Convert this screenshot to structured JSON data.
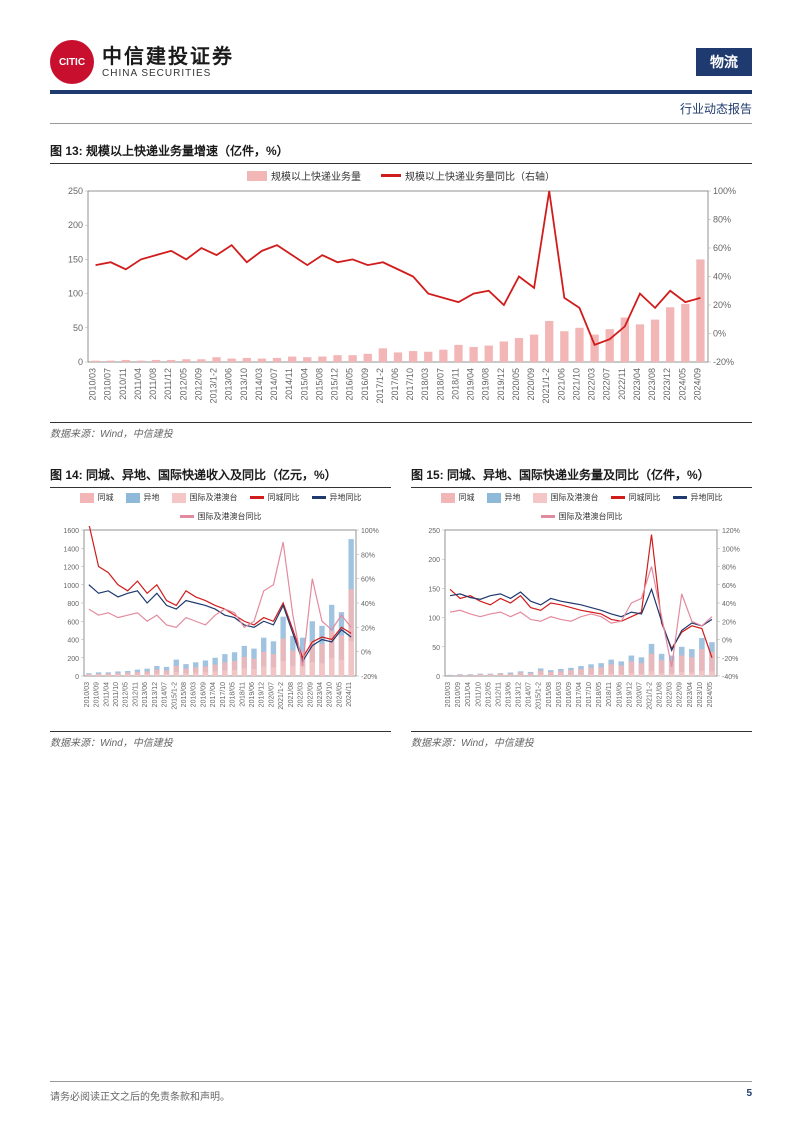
{
  "header": {
    "logo_inner": "CITIC",
    "logo_cn": "中信建投证券",
    "logo_en": "CHINA SECURITIES",
    "category": "物流",
    "report_type": "行业动态报告"
  },
  "colors": {
    "brand_blue": "#1f3a6e",
    "brand_red": "#c8102e",
    "bar_pink": "#f3b6b6",
    "line_red": "#d11c1c",
    "bar_cyan": "#8fb9d9",
    "line_navy": "#1f3a6e",
    "bar_lightpink": "#f5c6c6",
    "line_pink": "#e38b9e",
    "grid": "#d0d0d0"
  },
  "fig13": {
    "title": "图 13: 规模以上快递业务量增速（亿件，%）",
    "source": "数据来源：Wind，中信建投",
    "legend": [
      {
        "label": "规模以上快递业务量",
        "type": "bar",
        "color": "#f3b6b6"
      },
      {
        "label": "规模以上快递业务量同比（右轴）",
        "type": "line",
        "color": "#d11c1c"
      }
    ],
    "yleft": {
      "min": 0,
      "max": 250,
      "ticks": [
        0,
        50,
        100,
        150,
        200,
        250
      ]
    },
    "yright": {
      "min": -20,
      "max": 100,
      "ticks": [
        -20,
        0,
        20,
        40,
        60,
        80,
        100
      ],
      "suffix": "%"
    },
    "xlabels": [
      "2010/03",
      "2010/07",
      "2010/11",
      "2011/04",
      "2011/08",
      "2011/12",
      "2012/05",
      "2012/09",
      "2013/1-2",
      "2013/06",
      "2013/10",
      "2014/03",
      "2014/07",
      "2014/11",
      "2015/04",
      "2015/08",
      "2015/12",
      "2016/05",
      "2016/09",
      "2017/1-2",
      "2017/06",
      "2017/10",
      "2018/03",
      "2018/07",
      "2018/11",
      "2019/04",
      "2019/08",
      "2019/12",
      "2020/05",
      "2020/09",
      "2021/1-2",
      "2021/06",
      "2021/10",
      "2022/03",
      "2022/07",
      "2022/11",
      "2023/04",
      "2023/08",
      "2023/12",
      "2024/05",
      "2024/09"
    ],
    "bars": [
      2,
      2,
      3,
      2,
      3,
      3,
      4,
      4,
      7,
      5,
      6,
      5,
      6,
      8,
      7,
      8,
      10,
      10,
      12,
      20,
      14,
      16,
      15,
      18,
      25,
      22,
      24,
      30,
      35,
      40,
      60,
      45,
      50,
      40,
      48,
      65,
      55,
      62,
      80,
      85,
      150
    ],
    "line": [
      48,
      50,
      45,
      52,
      55,
      58,
      52,
      60,
      55,
      62,
      50,
      58,
      62,
      55,
      48,
      55,
      50,
      52,
      48,
      50,
      45,
      40,
      28,
      25,
      22,
      28,
      30,
      20,
      40,
      32,
      100,
      25,
      18,
      -8,
      -4,
      5,
      28,
      18,
      30,
      22,
      25
    ]
  },
  "fig14": {
    "title": "图 14: 同城、异地、国际快递收入及同比（亿元，%）",
    "source": "数据来源：Wind，中信建投",
    "legend": [
      {
        "label": "同城",
        "type": "bar",
        "color": "#f3b6b6"
      },
      {
        "label": "异地",
        "type": "bar",
        "color": "#8fb9d9"
      },
      {
        "label": "国际及港澳台",
        "type": "bar",
        "color": "#f5c6c6"
      },
      {
        "label": "同城同比",
        "type": "line",
        "color": "#d11c1c"
      },
      {
        "label": "异地同比",
        "type": "line",
        "color": "#1f3a6e"
      },
      {
        "label": "国际及港澳台同比",
        "type": "line",
        "color": "#e38b9e"
      }
    ],
    "yleft": {
      "min": 0,
      "max": 1600,
      "ticks": [
        0,
        200,
        400,
        600,
        800,
        1000,
        1200,
        1400,
        1600
      ]
    },
    "yright": {
      "min": -20,
      "max": 100,
      "ticks": [
        -20,
        0,
        20,
        40,
        60,
        80,
        100
      ],
      "suffix": "%"
    },
    "xlabels": [
      "2010/03",
      "2010/09",
      "2011/04",
      "2011/10",
      "2012/05",
      "2012/11",
      "2013/06",
      "2013/12",
      "2014/07",
      "2015/1-2",
      "2015/08",
      "2016/03",
      "2016/09",
      "2017/04",
      "2017/10",
      "2018/05",
      "2018/11",
      "2019/06",
      "2019/12",
      "2020/07",
      "2021/1-2",
      "2021/08",
      "2022/03",
      "2022/09",
      "2023/04",
      "2023/10",
      "2024/05",
      "2024/11"
    ],
    "bars_a": [
      30,
      40,
      40,
      50,
      55,
      70,
      80,
      110,
      100,
      180,
      130,
      150,
      170,
      200,
      240,
      260,
      330,
      300,
      420,
      380,
      650,
      440,
      420,
      600,
      550,
      780,
      700,
      1500
    ],
    "bars_b": [
      20,
      25,
      28,
      32,
      38,
      45,
      50,
      70,
      62,
      110,
      82,
      95,
      105,
      125,
      150,
      165,
      210,
      190,
      265,
      240,
      410,
      280,
      265,
      380,
      350,
      495,
      445,
      950
    ],
    "bars_c": [
      8,
      10,
      11,
      13,
      15,
      18,
      20,
      28,
      25,
      44,
      33,
      38,
      42,
      50,
      60,
      66,
      84,
      76,
      106,
      96,
      164,
      112,
      106,
      152,
      140,
      198,
      178,
      380
    ],
    "line_a": [
      105,
      70,
      65,
      55,
      50,
      58,
      48,
      55,
      42,
      38,
      50,
      45,
      42,
      38,
      35,
      30,
      25,
      22,
      28,
      25,
      40,
      18,
      -5,
      8,
      12,
      10,
      20,
      15
    ],
    "line_b": [
      55,
      48,
      50,
      45,
      48,
      50,
      40,
      48,
      38,
      35,
      42,
      40,
      38,
      35,
      30,
      28,
      22,
      20,
      25,
      22,
      38,
      15,
      -8,
      5,
      10,
      8,
      18,
      12
    ],
    "line_c": [
      35,
      30,
      32,
      28,
      30,
      32,
      25,
      30,
      22,
      20,
      28,
      25,
      22,
      30,
      35,
      32,
      20,
      25,
      50,
      55,
      90,
      30,
      -12,
      60,
      25,
      18,
      30,
      20
    ]
  },
  "fig15": {
    "title": "图 15: 同城、异地、国际快递业务量及同比（亿件，%）",
    "source": "数据来源：Wind，中信建投",
    "legend": [
      {
        "label": "同城",
        "type": "bar",
        "color": "#f3b6b6"
      },
      {
        "label": "异地",
        "type": "bar",
        "color": "#8fb9d9"
      },
      {
        "label": "国际及港澳台",
        "type": "bar",
        "color": "#f5c6c6"
      },
      {
        "label": "同城同比",
        "type": "line",
        "color": "#d11c1c"
      },
      {
        "label": "异地同比",
        "type": "line",
        "color": "#1f3a6e"
      },
      {
        "label": "国际及港澳台同比",
        "type": "line",
        "color": "#e38b9e"
      }
    ],
    "yleft": {
      "min": 0,
      "max": 250,
      "ticks": [
        0,
        50,
        100,
        150,
        200,
        250
      ]
    },
    "yright": {
      "min": -40,
      "max": 120,
      "ticks": [
        -40,
        -20,
        0,
        20,
        40,
        60,
        80,
        100,
        120
      ],
      "suffix": "%"
    },
    "xlabels": [
      "2010/03",
      "2010/09",
      "2011/04",
      "2011/10",
      "2012/05",
      "2012/11",
      "2013/06",
      "2013/12",
      "2014/07",
      "2015/1-2",
      "2015/08",
      "2016/03",
      "2016/09",
      "2017/04",
      "2017/10",
      "2018/05",
      "2018/11",
      "2019/06",
      "2019/12",
      "2020/07",
      "2021/1-2",
      "2021/08",
      "2022/03",
      "2022/09",
      "2023/04",
      "2023/10",
      "2024/05"
    ],
    "bars_a": [
      2,
      3,
      3,
      4,
      4,
      5,
      6,
      8,
      7,
      13,
      10,
      12,
      14,
      17,
      20,
      22,
      28,
      25,
      35,
      32,
      55,
      38,
      35,
      50,
      46,
      65,
      58
    ],
    "bars_b": [
      1,
      2,
      2,
      3,
      3,
      4,
      4,
      6,
      5,
      9,
      7,
      8,
      10,
      12,
      14,
      15,
      20,
      18,
      25,
      22,
      38,
      27,
      25,
      35,
      32,
      46,
      41
    ],
    "bars_c": [
      0,
      0,
      0,
      1,
      1,
      1,
      1,
      1,
      1,
      2,
      1,
      2,
      2,
      2,
      3,
      3,
      4,
      3,
      5,
      4,
      8,
      5,
      5,
      7,
      6,
      9,
      8
    ],
    "line_a": [
      55,
      45,
      48,
      42,
      38,
      45,
      40,
      48,
      35,
      32,
      40,
      38,
      35,
      32,
      30,
      28,
      22,
      20,
      25,
      30,
      115,
      18,
      -10,
      8,
      15,
      12,
      -20
    ],
    "line_b": [
      48,
      50,
      46,
      44,
      48,
      50,
      45,
      52,
      42,
      38,
      45,
      42,
      40,
      38,
      35,
      32,
      28,
      25,
      30,
      28,
      55,
      20,
      -12,
      10,
      18,
      15,
      22
    ],
    "line_c": [
      30,
      32,
      28,
      25,
      28,
      30,
      25,
      30,
      22,
      20,
      25,
      22,
      20,
      25,
      28,
      25,
      18,
      20,
      40,
      45,
      80,
      25,
      -30,
      50,
      20,
      15,
      25
    ]
  },
  "footer": {
    "disclaimer": "请务必阅读正文之后的免责条款和声明。",
    "page": "5"
  }
}
